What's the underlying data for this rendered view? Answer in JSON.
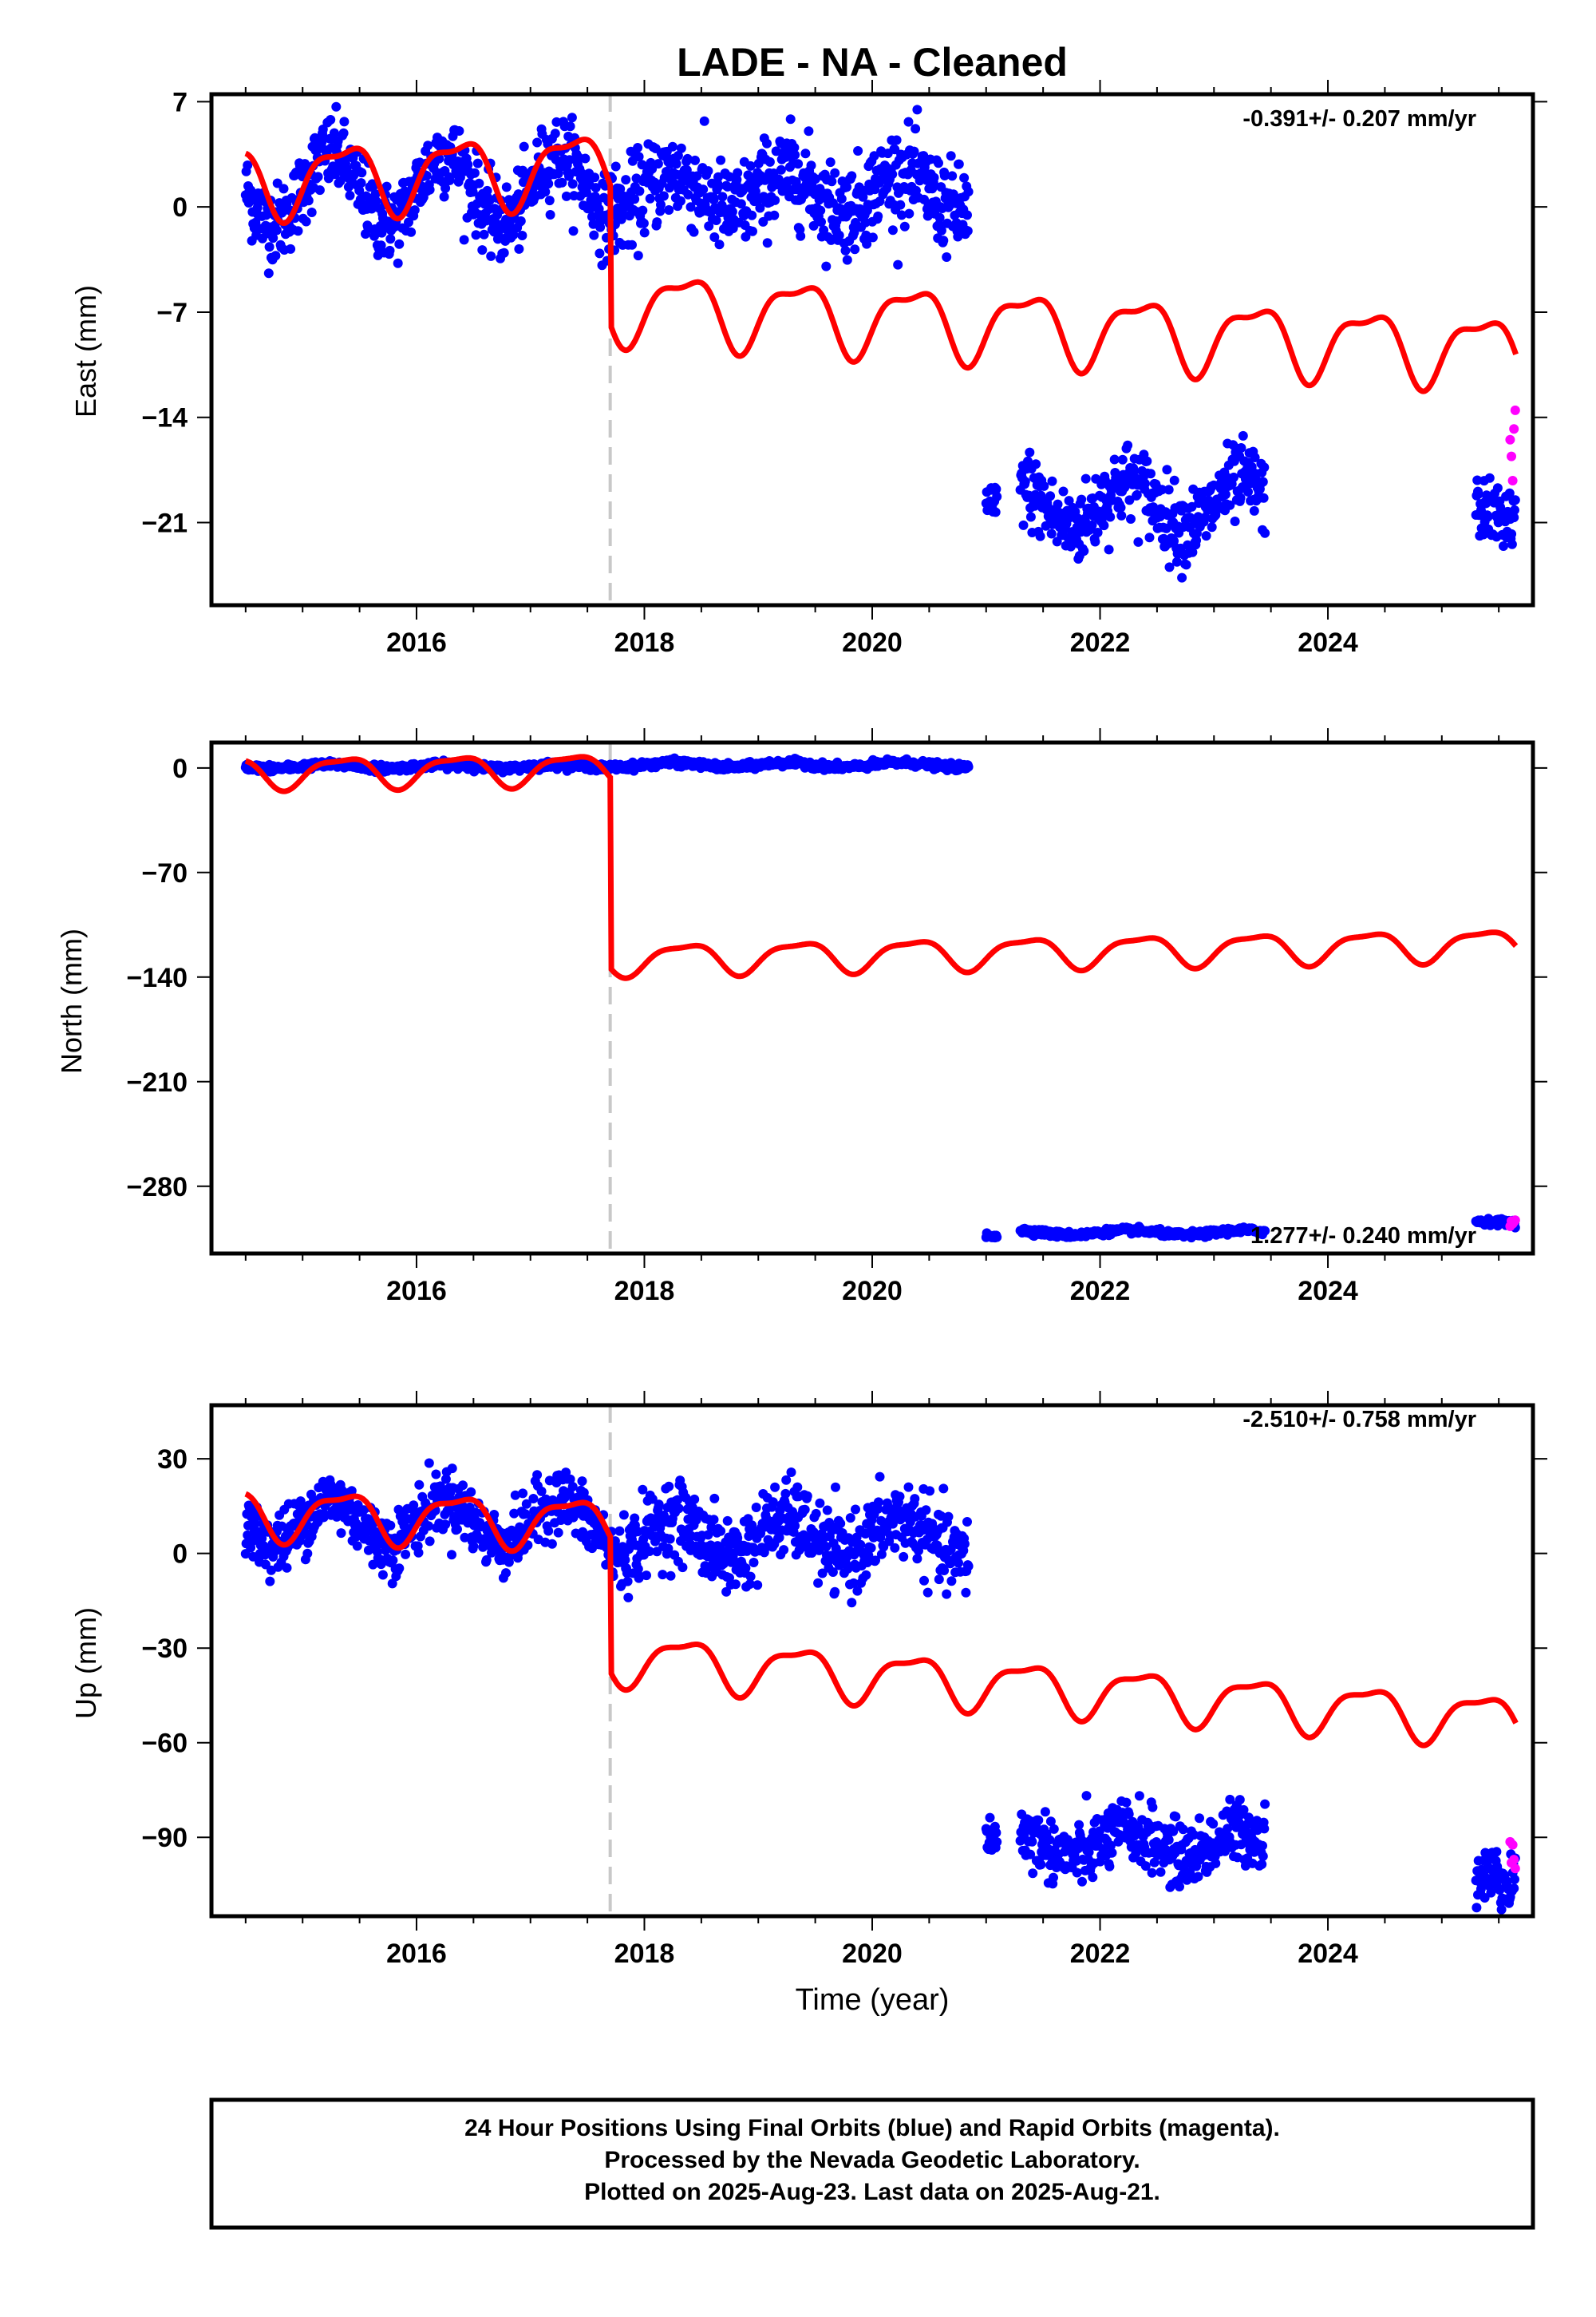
{
  "title": "LADE  - NA - Cleaned",
  "xlabel": "Time (year)",
  "footer": {
    "line1": "24 Hour Positions Using Final Orbits (blue) and Rapid Orbits (magenta).",
    "line2": "Processed by the Nevada Geodetic Laboratory.",
    "line3": "Plotted on 2025-Aug-23. Last data on 2025-Aug-21."
  },
  "colors": {
    "final": "#0000ff",
    "rapid": "#ff00ff",
    "model": "#ff0000",
    "step_line": "#c8c8c8",
    "frame": "#000000"
  },
  "chart_data": [
    {
      "type": "scatter",
      "component": "east",
      "ylabel": "East (mm)",
      "rate_text": "-0.391+/- 0.207 mm/yr",
      "xlim": [
        2014.2,
        2025.8
      ],
      "ylim": [
        -26.5,
        7.5
      ],
      "xticks": [
        2016,
        2018,
        2020,
        2022,
        2024
      ],
      "yticks": [
        7,
        0,
        -7,
        -14,
        -21
      ],
      "ytick_labels": [
        "7",
        "0",
        "-7",
        "-14",
        "-21"
      ],
      "step_epoch": 2017.7,
      "segments": [
        {
          "orbit": "final",
          "from": 2014.5,
          "to": 2017.7,
          "level": 1.2,
          "amp": 2.3,
          "noise": 1.3
        },
        {
          "orbit": "final",
          "from": 2017.7,
          "to": 2020.85,
          "level": 1.0,
          "amp": 1.2,
          "noise": 1.5
        },
        {
          "orbit": "final",
          "from": 2021.0,
          "to": 2021.1,
          "level": -20.0,
          "amp": 0.0,
          "noise": 0.8
        },
        {
          "orbit": "final",
          "from": 2021.3,
          "to": 2023.45,
          "level": -19.8,
          "amp": 1.5,
          "noise": 1.3
        },
        {
          "orbit": "final",
          "from": 2025.3,
          "to": 2025.65,
          "level": -20.5,
          "amp": 0.5,
          "noise": 1.0
        },
        {
          "orbit": "rapid",
          "from": 2025.6,
          "to": 2025.65,
          "level": -17.0,
          "amp": 0.0,
          "noise": 1.8
        }
      ],
      "model": {
        "pre_offset": 1.8,
        "pre_rate": 0.3,
        "post_offset": -6.5,
        "post_rate": -0.39,
        "amp": 2.2,
        "amp2": 0.8
      }
    },
    {
      "type": "scatter",
      "component": "north",
      "ylabel": "North (mm)",
      "rate_text": "1.277+/- 0.240 mm/yr",
      "xlim": [
        2014.2,
        2025.8
      ],
      "ylim": [
        -325,
        17
      ],
      "xticks": [
        2016,
        2018,
        2020,
        2022,
        2024
      ],
      "yticks": [
        0,
        -70,
        -140,
        -210,
        -280
      ],
      "ytick_labels": [
        "0",
        "-70",
        "-140",
        "-210",
        "-280"
      ],
      "step_epoch": 2017.7,
      "segments": [
        {
          "orbit": "final",
          "from": 2014.5,
          "to": 2017.7,
          "level": 1.0,
          "amp": 1.2,
          "noise": 1.1
        },
        {
          "orbit": "final",
          "from": 2017.7,
          "to": 2020.85,
          "level": 2.0,
          "amp": 1.5,
          "noise": 1.1
        },
        {
          "orbit": "final",
          "from": 2021.0,
          "to": 2021.1,
          "level": -313.0,
          "amp": 0.0,
          "noise": 1.0
        },
        {
          "orbit": "final",
          "from": 2021.3,
          "to": 2023.45,
          "level": -311.0,
          "amp": 1.5,
          "noise": 1.0
        },
        {
          "orbit": "final",
          "from": 2025.3,
          "to": 2025.65,
          "level": -304.0,
          "amp": 0.5,
          "noise": 1.0
        },
        {
          "orbit": "rapid",
          "from": 2025.6,
          "to": 2025.65,
          "level": -305.0,
          "amp": 0.0,
          "noise": 1.2
        }
      ],
      "model": {
        "pre_offset": -3.0,
        "pre_rate": 0.8,
        "post_offset": -128.0,
        "post_rate": 1.277,
        "amp": 10.0,
        "amp2": 3.0
      }
    },
    {
      "type": "scatter",
      "component": "up",
      "ylabel": "Up (mm)",
      "rate_text": "-2.510+/- 0.758 mm/yr",
      "xlim": [
        2014.2,
        2025.8
      ],
      "ylim": [
        -115,
        47
      ],
      "xticks": [
        2016,
        2018,
        2020,
        2022,
        2024
      ],
      "yticks": [
        30,
        0,
        -30,
        -60,
        -90
      ],
      "ytick_labels": [
        "30",
        "0",
        "-30",
        "-60",
        "-90"
      ],
      "step_epoch": 2017.7,
      "segments": [
        {
          "orbit": "final",
          "from": 2014.5,
          "to": 2017.7,
          "level": 10.0,
          "amp": 7.0,
          "noise": 5.0
        },
        {
          "orbit": "final",
          "from": 2017.7,
          "to": 2020.85,
          "level": 5.0,
          "amp": 6.0,
          "noise": 6.0
        },
        {
          "orbit": "final",
          "from": 2021.0,
          "to": 2021.1,
          "level": -90.0,
          "amp": 0.0,
          "noise": 4.0
        },
        {
          "orbit": "final",
          "from": 2021.3,
          "to": 2023.45,
          "level": -92.0,
          "amp": 4.0,
          "noise": 5.0
        },
        {
          "orbit": "final",
          "from": 2025.3,
          "to": 2025.65,
          "level": -103.0,
          "amp": 1.0,
          "noise": 5.0
        },
        {
          "orbit": "rapid",
          "from": 2025.6,
          "to": 2025.65,
          "level": -92.0,
          "amp": 0.0,
          "noise": 8.0
        }
      ],
      "model": {
        "pre_offset": 13.0,
        "pre_rate": -1.0,
        "post_offset": -33.0,
        "post_rate": -2.51,
        "amp": 7.5,
        "amp2": 2.5
      }
    }
  ]
}
